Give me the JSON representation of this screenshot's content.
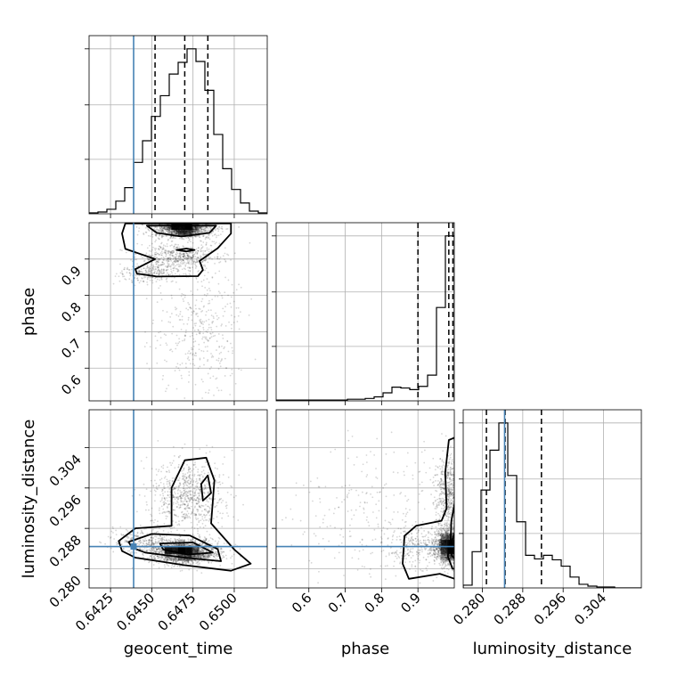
{
  "chart_data": {
    "type": "corner",
    "parameters": [
      "geocent_time",
      "phase",
      "luminosity_distance"
    ],
    "truths": [
      0.6439,
      null,
      0.2844
    ],
    "colors": {
      "truth": "#4682b4",
      "line": "#000000",
      "grid": "#b0b0b0"
    },
    "grid": true,
    "axes": {
      "geocent_time": {
        "range": [
          0.6412,
          0.652
        ],
        "ticks": [
          0.6425,
          0.645,
          0.6475,
          0.65
        ],
        "tick_labels": [
          "0.6425",
          "0.6450",
          "0.6475",
          "0.6500"
        ]
      },
      "phase": {
        "range": [
          0.51,
          1.0
        ],
        "ticks": [
          0.6,
          0.7,
          0.8,
          0.9
        ],
        "tick_labels": [
          "0.6",
          "0.7",
          "0.8",
          "0.9"
        ]
      },
      "luminosity_distance": {
        "range": [
          0.2762,
          0.3115
        ],
        "ticks": [
          0.28,
          0.288,
          0.296,
          0.304
        ],
        "tick_labels": [
          "0.280",
          "0.288",
          "0.296",
          "0.304"
        ]
      }
    },
    "histograms": {
      "geocent_time": {
        "edges": [
          0.6412,
          0.64174,
          0.64228,
          0.64282,
          0.64336,
          0.6439,
          0.64444,
          0.64498,
          0.64552,
          0.64606,
          0.6466,
          0.64714,
          0.64768,
          0.64822,
          0.64876,
          0.6493,
          0.64984,
          0.65038,
          0.65092,
          0.65146,
          0.652
        ],
        "counts": [
          1,
          2,
          5,
          14,
          29,
          57,
          81,
          108,
          131,
          155,
          168,
          183,
          169,
          137,
          88,
          50,
          27,
          12,
          3,
          1
        ],
        "quantiles": [
          0.6452,
          0.647,
          0.6484
        ]
      },
      "phase": {
        "edges": [
          0.51,
          0.5345,
          0.559,
          0.5835,
          0.608,
          0.6325,
          0.657,
          0.6815,
          0.706,
          0.7305,
          0.755,
          0.7795,
          0.804,
          0.8285,
          0.853,
          0.8775,
          0.902,
          0.9265,
          0.951,
          0.9755,
          1.0
        ],
        "counts": [
          1,
          1,
          1,
          1,
          1,
          1,
          1,
          1,
          2,
          2,
          3,
          5,
          10,
          17,
          16,
          14,
          18,
          32,
          116,
          205
        ],
        "quantiles": [
          0.9,
          0.9849,
          0.9961
        ]
      },
      "luminosity_distance": {
        "edges": [
          0.2762,
          0.27797,
          0.27973,
          0.2815,
          0.28326,
          0.28503,
          0.28679,
          0.28856,
          0.29032,
          0.29209,
          0.29385,
          0.29562,
          0.29738,
          0.29915,
          0.30091,
          0.30268,
          0.30444,
          0.30621,
          0.30797,
          0.30974,
          0.3115
        ],
        "counts": [
          3,
          40,
          108,
          152,
          182,
          124,
          73,
          36,
          32,
          36,
          31,
          24,
          12,
          4,
          2,
          1,
          1,
          0,
          0,
          0
        ],
        "quantiles": [
          0.2808,
          0.2845,
          0.2917
        ]
      }
    },
    "joint_2d": [
      {
        "x": "geocent_time",
        "y": "phase",
        "clusters": [
          {
            "cx": 0.6469,
            "cy": 0.985,
            "sx": 0.0009,
            "sy": 0.013,
            "w": 0.55
          },
          {
            "cx": 0.6466,
            "cy": 0.905,
            "sx": 0.0012,
            "sy": 0.018,
            "w": 0.2
          },
          {
            "cx": 0.6449,
            "cy": 0.862,
            "sx": 0.0009,
            "sy": 0.013,
            "w": 0.1
          },
          {
            "cx": 0.6479,
            "cy": 0.7,
            "sx": 0.0013,
            "sy": 0.09,
            "w": 0.15
          }
        ],
        "contours": [
          [
            [
              0.6432,
              0.97
            ],
            [
              0.6434,
              0.928
            ],
            [
              0.6452,
              0.9
            ],
            [
              0.644,
              0.872
            ],
            [
              0.6441,
              0.86
            ],
            [
              0.6453,
              0.852
            ],
            [
              0.6478,
              0.853
            ],
            [
              0.6481,
              0.87
            ],
            [
              0.6479,
              0.895
            ],
            [
              0.649,
              0.93
            ],
            [
              0.6498,
              0.97
            ],
            [
              0.6498,
              0.998
            ],
            [
              0.6434,
              0.998
            ]
          ],
          [
            [
              0.6447,
              0.992
            ],
            [
              0.6453,
              0.972
            ],
            [
              0.6468,
              0.962
            ],
            [
              0.6485,
              0.972
            ],
            [
              0.6489,
              0.992
            ]
          ],
          [
            [
              0.6465,
              0.925
            ],
            [
              0.6471,
              0.921
            ],
            [
              0.6476,
              0.925
            ],
            [
              0.6471,
              0.929
            ]
          ]
        ]
      },
      {
        "x": "geocent_time",
        "y": "luminosity_distance",
        "clusters": [
          {
            "cx": 0.647,
            "cy": 0.2835,
            "sx": 0.0011,
            "sy": 0.0012,
            "w": 0.6
          },
          {
            "cx": 0.6472,
            "cy": 0.2945,
            "sx": 0.0011,
            "sy": 0.0035,
            "w": 0.3
          },
          {
            "cx": 0.6443,
            "cy": 0.2855,
            "sx": 0.0009,
            "sy": 0.0012,
            "w": 0.1
          }
        ],
        "contours": [
          [
            [
              0.643,
              0.2855
            ],
            [
              0.644,
              0.288
            ],
            [
              0.6462,
              0.2885
            ],
            [
              0.6462,
              0.296
            ],
            [
              0.647,
              0.3015
            ],
            [
              0.6483,
              0.302
            ],
            [
              0.6488,
              0.2975
            ],
            [
              0.6486,
              0.289
            ],
            [
              0.65,
              0.2838
            ],
            [
              0.651,
              0.281
            ],
            [
              0.6498,
              0.2796
            ],
            [
              0.647,
              0.2807
            ],
            [
              0.644,
              0.2822
            ],
            [
              0.6432,
              0.2835
            ]
          ],
          [
            [
              0.6436,
              0.2853
            ],
            [
              0.645,
              0.2869
            ],
            [
              0.6473,
              0.2866
            ],
            [
              0.649,
              0.2839
            ],
            [
              0.6492,
              0.2815
            ],
            [
              0.647,
              0.2822
            ],
            [
              0.6446,
              0.2832
            ],
            [
              0.6438,
              0.2842
            ]
          ],
          [
            [
              0.648,
              0.2968
            ],
            [
              0.6484,
              0.2985
            ],
            [
              0.6486,
              0.295
            ],
            [
              0.6481,
              0.2935
            ]
          ],
          [
            [
              0.6455,
              0.285
            ],
            [
              0.6475,
              0.2852
            ],
            [
              0.6487,
              0.2832
            ],
            [
              0.6472,
              0.2828
            ],
            [
              0.6457,
              0.2838
            ]
          ]
        ]
      },
      {
        "x": "phase",
        "y": "luminosity_distance",
        "clusters": [
          {
            "cx": 0.985,
            "cy": 0.2845,
            "sx": 0.02,
            "sy": 0.0018,
            "w": 0.55
          },
          {
            "cx": 0.985,
            "cy": 0.295,
            "sx": 0.02,
            "sy": 0.004,
            "w": 0.25
          },
          {
            "cx": 0.9,
            "cy": 0.2845,
            "sx": 0.04,
            "sy": 0.002,
            "w": 0.1
          },
          {
            "cx": 0.78,
            "cy": 0.29,
            "sx": 0.12,
            "sy": 0.008,
            "w": 0.1
          }
        ],
        "contours": [
          [
            [
              1.001,
              0.306
            ],
            [
              0.985,
              0.3055
            ],
            [
              0.975,
              0.299
            ],
            [
              0.979,
              0.292
            ],
            [
              0.965,
              0.2895
            ],
            [
              0.895,
              0.2885
            ],
            [
              0.863,
              0.2865
            ],
            [
              0.858,
              0.281
            ],
            [
              0.875,
              0.278
            ],
            [
              0.96,
              0.279
            ],
            [
              1.001,
              0.278
            ]
          ],
          [
            [
              1.001,
              0.293
            ],
            [
              0.992,
              0.2895
            ],
            [
              0.99,
              0.286
            ],
            [
              0.982,
              0.2825
            ],
            [
              0.995,
              0.28
            ],
            [
              1.001,
              0.28
            ]
          ],
          [
            [
              1.001,
              0.287
            ],
            [
              0.993,
              0.2855
            ],
            [
              0.993,
              0.2826
            ],
            [
              1.001,
              0.282
            ]
          ]
        ]
      }
    ]
  }
}
